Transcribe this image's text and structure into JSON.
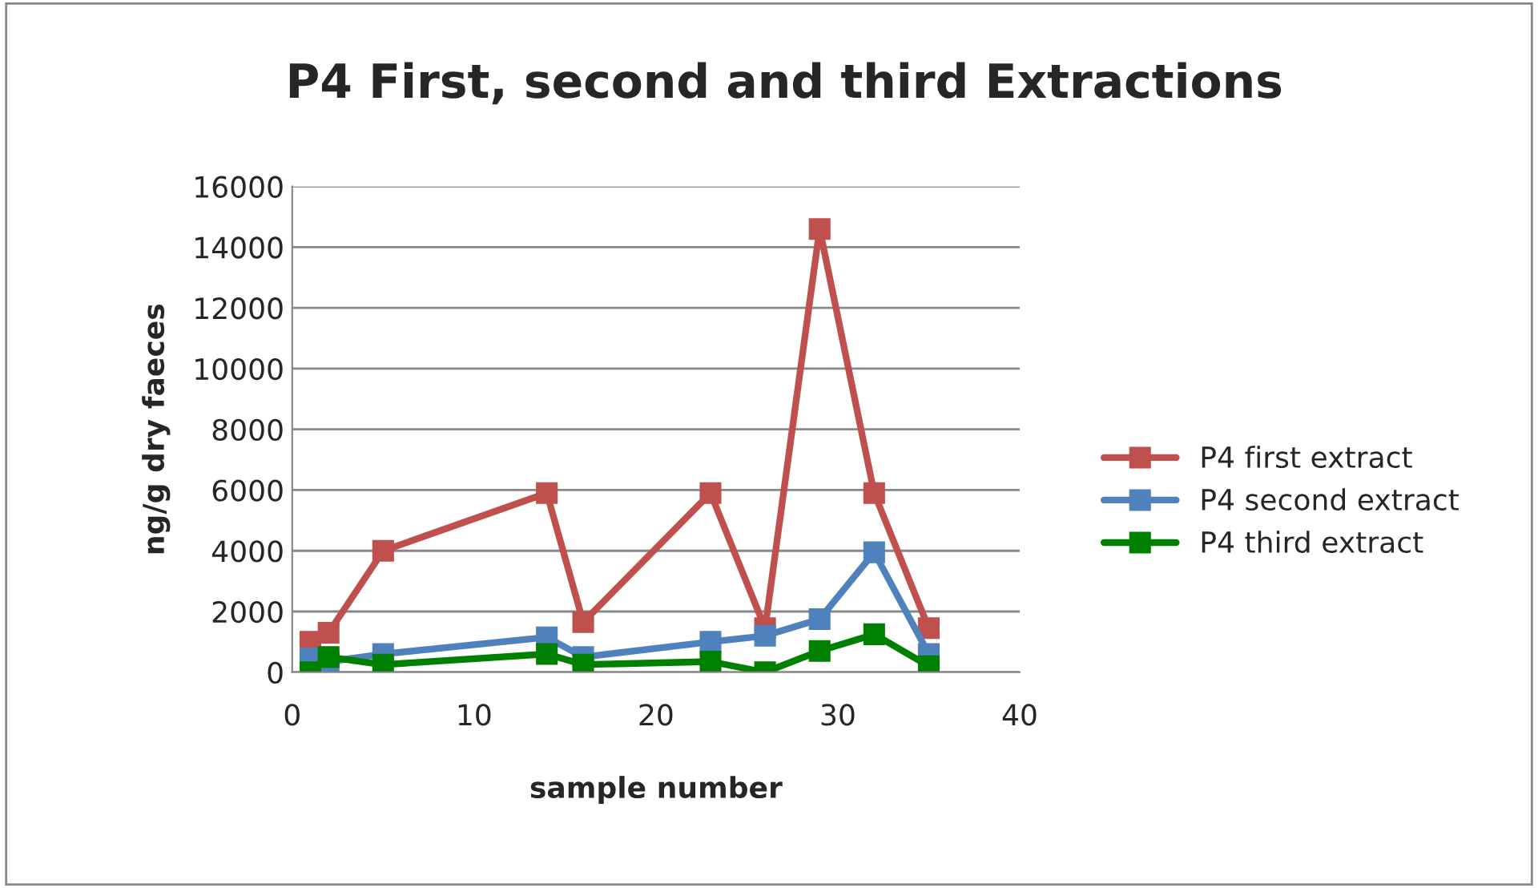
{
  "chart_data": {
    "type": "line",
    "title": "P4 First, second and third Extractions",
    "xlabel": "sample number",
    "ylabel": "ng/g dry faeces",
    "x": [
      1,
      2,
      5,
      14,
      16,
      23,
      26,
      29,
      32,
      35
    ],
    "series": [
      {
        "name": "P4 first extract",
        "color": "#c0504d",
        "values": [
          1000,
          1300,
          4000,
          5900,
          1650,
          5900,
          1450,
          14600,
          5900,
          1450
        ]
      },
      {
        "name": "P4 second extract",
        "color": "#4f81bd",
        "values": [
          450,
          350,
          600,
          1150,
          500,
          1000,
          1200,
          1750,
          3950,
          600
        ]
      },
      {
        "name": "P4 third extract",
        "color": "#008000",
        "values": [
          0,
          500,
          250,
          600,
          250,
          350,
          0,
          700,
          1250,
          200
        ]
      }
    ],
    "xlim": [
      0,
      40
    ],
    "xticks": [
      0,
      10,
      20,
      30,
      40
    ],
    "ylim": [
      0,
      16000
    ],
    "yticks": [
      0,
      2000,
      4000,
      6000,
      8000,
      10000,
      12000,
      14000,
      16000
    ],
    "grid": "y",
    "legend": "right",
    "marker": "square",
    "line_style": "solid"
  }
}
